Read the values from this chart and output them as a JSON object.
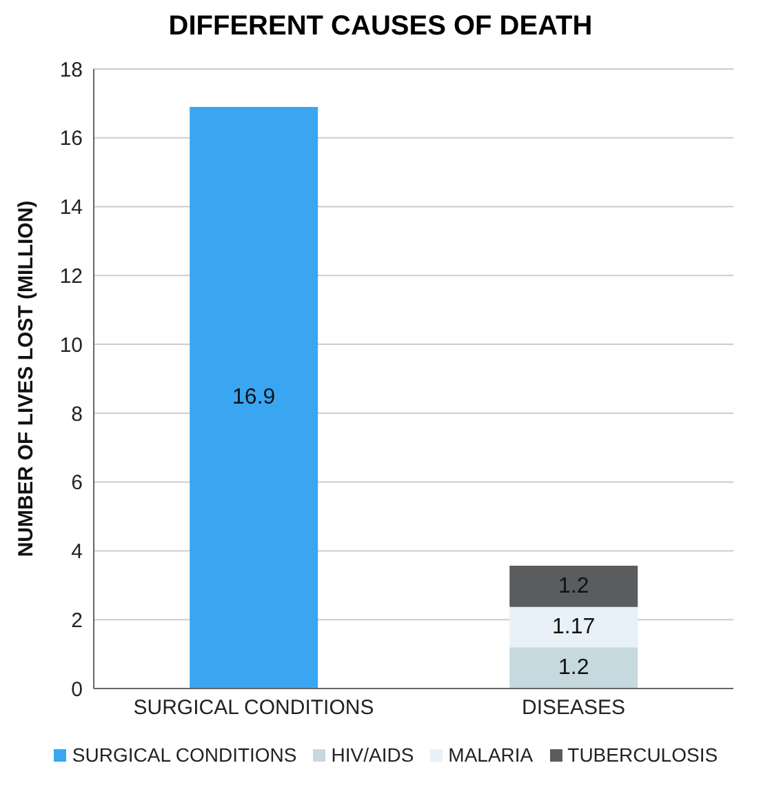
{
  "chart_data": {
    "type": "bar",
    "title": "DIFFERENT CAUSES OF DEATH",
    "ylabel": "NUMBER OF LIVES LOST (MILLION)",
    "categories": [
      "SURGICAL CONDITIONS",
      "DISEASES"
    ],
    "stacked": true,
    "data_labels": true,
    "grid": "y",
    "legend": "bottom",
    "ylim": [
      0,
      18
    ],
    "yticks": [
      0,
      2,
      4,
      6,
      8,
      10,
      12,
      14,
      16,
      18
    ],
    "series": [
      {
        "name": "SURGICAL CONDITIONS",
        "color": "#3aa6f2",
        "values": [
          16.9,
          null
        ]
      },
      {
        "name": "HIV/AIDS",
        "color": "#c5d9df",
        "values": [
          null,
          1.2
        ]
      },
      {
        "name": "MALARIA",
        "color": "#e8f0f8",
        "values": [
          null,
          1.17
        ]
      },
      {
        "name": "TUBERCULOSIS",
        "color": "#5a5c5e",
        "values": [
          null,
          1.2
        ]
      }
    ]
  }
}
